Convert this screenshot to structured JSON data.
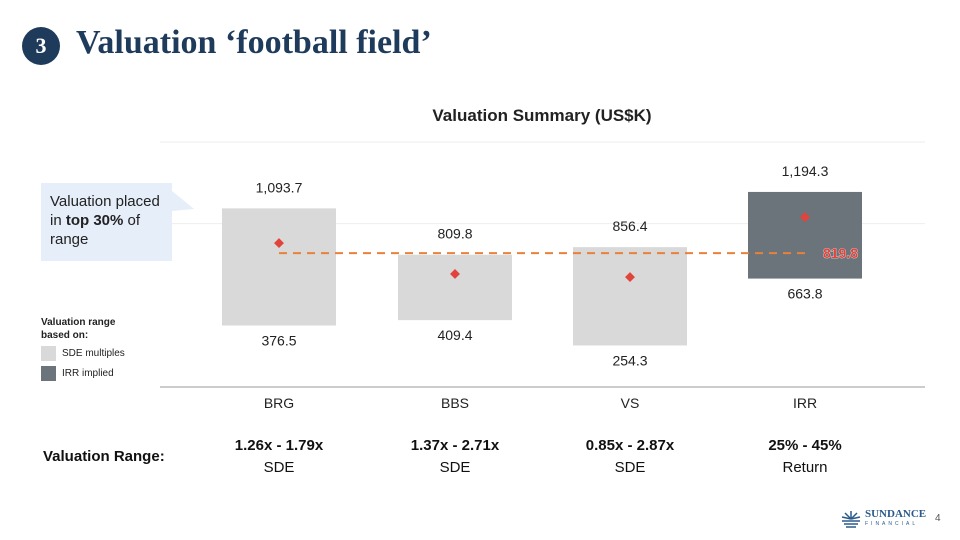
{
  "header": {
    "badge": "3",
    "title": "Valuation ‘football field’"
  },
  "callout": {
    "pre": "Valuation placed in ",
    "bold1": "top 30%",
    "post": " of range"
  },
  "legend": {
    "title": "Valuation range based on:",
    "items": [
      {
        "label": "SDE multiples",
        "color": "#d9d9d9"
      },
      {
        "label": "IRR implied",
        "color": "#6b737b"
      }
    ]
  },
  "range": {
    "label": "Valuation Range:",
    "items": [
      {
        "multiple": "1.26x - 1.79x",
        "basis": "SDE"
      },
      {
        "multiple": "1.37x - 2.71x",
        "basis": "SDE"
      },
      {
        "multiple": "0.85x - 2.87x",
        "basis": "SDE"
      },
      {
        "multiple": "25% - 45%",
        "basis": "Return"
      }
    ]
  },
  "footer": {
    "logo_text": "SUNDANCE",
    "logo_sub": "FINANCIAL",
    "page": "4"
  },
  "chart_data": {
    "type": "floating-bar",
    "title": "Valuation Summary (US$K)",
    "categories": [
      "BRG",
      "BBS",
      "VS",
      "IRR"
    ],
    "low": [
      376.5,
      409.4,
      254.3,
      663.8
    ],
    "high": [
      1093.7,
      809.8,
      856.4,
      1194.3
    ],
    "low_labels": [
      "376.5",
      "409.4",
      "254.3",
      "663.8"
    ],
    "high_labels": [
      "1,093.7",
      "809.8",
      "856.4",
      "1,194.3"
    ],
    "midpoint_markers": [
      881,
      692,
      673,
      1040
    ],
    "bar_colors": [
      "#d9d9d9",
      "#d9d9d9",
      "#d9d9d9",
      "#6b737b"
    ],
    "marker_color": "#e0443a",
    "reference_line": {
      "value": 819.8,
      "label": "819.8",
      "color": "#e8823a"
    },
    "ylim": [
      0,
      1500
    ],
    "grid": true
  }
}
